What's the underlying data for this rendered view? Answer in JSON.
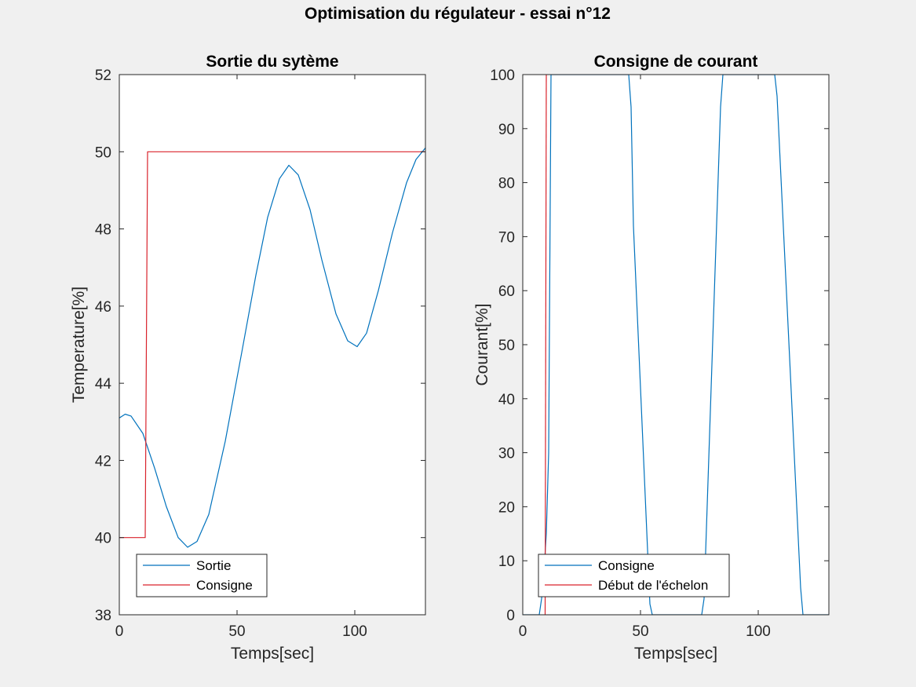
{
  "figure": {
    "title": "Optimisation du régulateur - essai n°12",
    "background": "#f0f0f0"
  },
  "chart_data": [
    {
      "type": "line",
      "title": "Sortie du sytème",
      "xlabel": "Temps[sec]",
      "ylabel": "Temperature[%]",
      "xlim": [
        0,
        130
      ],
      "ylim": [
        38,
        52
      ],
      "xticks": [
        0,
        50,
        100
      ],
      "yticks": [
        38,
        40,
        42,
        44,
        46,
        48,
        50,
        52
      ],
      "grid": false,
      "legend": "bottom-left",
      "series": [
        {
          "name": "Sortie",
          "color": "#0072bd",
          "x": [
            0,
            2.5,
            5,
            10,
            15,
            20,
            25,
            29,
            33,
            38,
            45,
            52,
            58,
            63,
            68,
            72,
            76,
            81,
            86,
            92,
            97,
            101,
            105,
            110,
            116,
            122,
            126,
            130
          ],
          "y": [
            43.1,
            43.2,
            43.15,
            42.7,
            41.8,
            40.8,
            40.0,
            39.75,
            39.9,
            40.6,
            42.5,
            44.8,
            46.8,
            48.3,
            49.3,
            49.65,
            49.4,
            48.5,
            47.2,
            45.8,
            45.1,
            44.95,
            45.3,
            46.4,
            47.9,
            49.2,
            49.8,
            50.1
          ]
        },
        {
          "name": "Consigne",
          "color": "#d9232c",
          "x": [
            0,
            11,
            12,
            130
          ],
          "y": [
            40,
            40,
            50,
            50
          ]
        }
      ]
    },
    {
      "type": "line",
      "title": "Consigne de courant",
      "xlabel": "Temps[sec]",
      "ylabel": "Courant[%]",
      "xlim": [
        0,
        130
      ],
      "ylim": [
        0,
        100
      ],
      "xticks": [
        0,
        50,
        100
      ],
      "yticks": [
        0,
        10,
        20,
        30,
        40,
        50,
        60,
        70,
        80,
        90,
        100
      ],
      "grid": false,
      "legend": "bottom-left",
      "series": [
        {
          "name": "Consigne",
          "color": "#0072bd",
          "x": [
            0,
            7,
            8,
            9,
            10,
            11,
            12,
            45,
            46,
            47,
            54,
            55,
            76,
            77,
            84,
            85,
            86,
            107,
            108,
            118,
            119,
            130
          ],
          "y": [
            0,
            0,
            3,
            8,
            15,
            30,
            100,
            100,
            94,
            72,
            2,
            0,
            0,
            3,
            94,
            100,
            100,
            100,
            96,
            5,
            0,
            0
          ]
        },
        {
          "name": "Début de l'échelon",
          "color": "#d9232c",
          "x": [
            9.5,
            10
          ],
          "y": [
            0,
            100
          ]
        }
      ]
    }
  ]
}
